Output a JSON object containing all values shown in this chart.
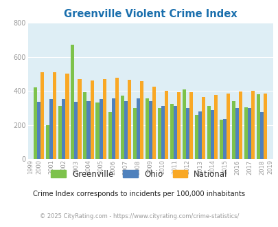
{
  "title": "Greenville Violent Crime Index",
  "years": [
    1999,
    2000,
    2001,
    2002,
    2003,
    2004,
    2005,
    2006,
    2007,
    2008,
    2009,
    2010,
    2011,
    2012,
    2013,
    2014,
    2015,
    2016,
    2017,
    2018,
    2019
  ],
  "greenville": [
    null,
    420,
    200,
    310,
    670,
    390,
    330,
    275,
    370,
    300,
    355,
    300,
    325,
    410,
    260,
    310,
    230,
    340,
    305,
    380,
    null
  ],
  "ohio": [
    null,
    335,
    350,
    350,
    335,
    340,
    350,
    355,
    340,
    355,
    340,
    310,
    310,
    300,
    280,
    285,
    235,
    300,
    300,
    275,
    null
  ],
  "national": [
    null,
    510,
    510,
    500,
    470,
    460,
    470,
    475,
    465,
    455,
    425,
    400,
    390,
    390,
    365,
    375,
    385,
    395,
    400,
    385,
    null
  ],
  "greenville_color": "#7dc24b",
  "ohio_color": "#4f81bd",
  "national_color": "#f9a825",
  "bg_color": "#deeef5",
  "ylim": [
    0,
    800
  ],
  "yticks": [
    0,
    200,
    400,
    600,
    800
  ],
  "subtitle": "Crime Index corresponds to incidents per 100,000 inhabitants",
  "footer": "© 2025 CityRating.com - https://www.cityrating.com/crime-statistics/",
  "legend_labels": [
    "Greenville",
    "Ohio",
    "National"
  ],
  "bar_width": 0.28,
  "title_color": "#1a6fad",
  "subtitle_color": "#222222",
  "footer_color": "#999999"
}
